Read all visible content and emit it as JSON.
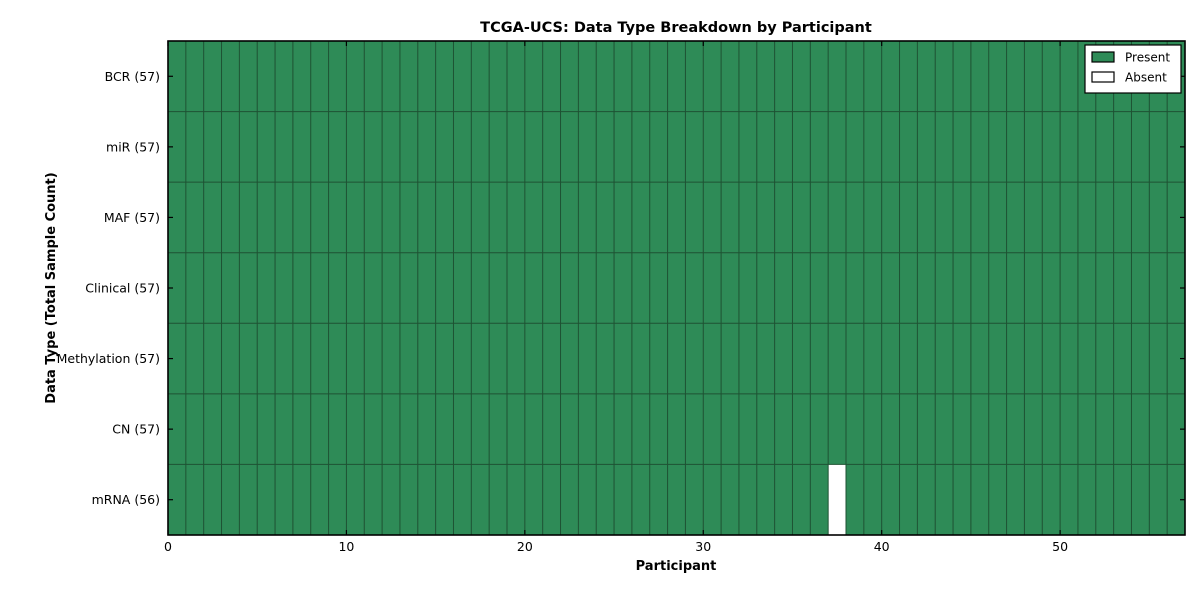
{
  "chart_data": {
    "type": "heatmap",
    "title": "TCGA-UCS: Data Type Breakdown by Participant",
    "xlabel": "Participant",
    "ylabel": "Data Type (Total Sample Count)",
    "n_participants": 57,
    "x_ticks": [
      0,
      10,
      20,
      30,
      40,
      50
    ],
    "rows": [
      {
        "label": "BCR (57)",
        "data_type": "BCR",
        "sample_count": 57,
        "absent_participants": []
      },
      {
        "label": "miR (57)",
        "data_type": "miR",
        "sample_count": 57,
        "absent_participants": []
      },
      {
        "label": "MAF (57)",
        "data_type": "MAF",
        "sample_count": 57,
        "absent_participants": []
      },
      {
        "label": "Clinical (57)",
        "data_type": "Clinical",
        "sample_count": 57,
        "absent_participants": []
      },
      {
        "label": "Methylation (57)",
        "data_type": "Methylation",
        "sample_count": 57,
        "absent_participants": []
      },
      {
        "label": "CN (57)",
        "data_type": "CN",
        "sample_count": 57,
        "absent_participants": []
      },
      {
        "label": "mRNA (56)",
        "data_type": "mRNA",
        "sample_count": 56,
        "absent_participants": [
          37
        ]
      }
    ],
    "legend": [
      {
        "label": "Present",
        "color": "#2e8b57"
      },
      {
        "label": "Absent",
        "color": "#ffffff"
      }
    ],
    "colors": {
      "present": "#2e8b57",
      "absent": "#ffffff",
      "cell_edge": "#1e5233",
      "axis": "#000000",
      "background": "#ffffff"
    },
    "legend_position": "upper-right",
    "grid": true
  }
}
